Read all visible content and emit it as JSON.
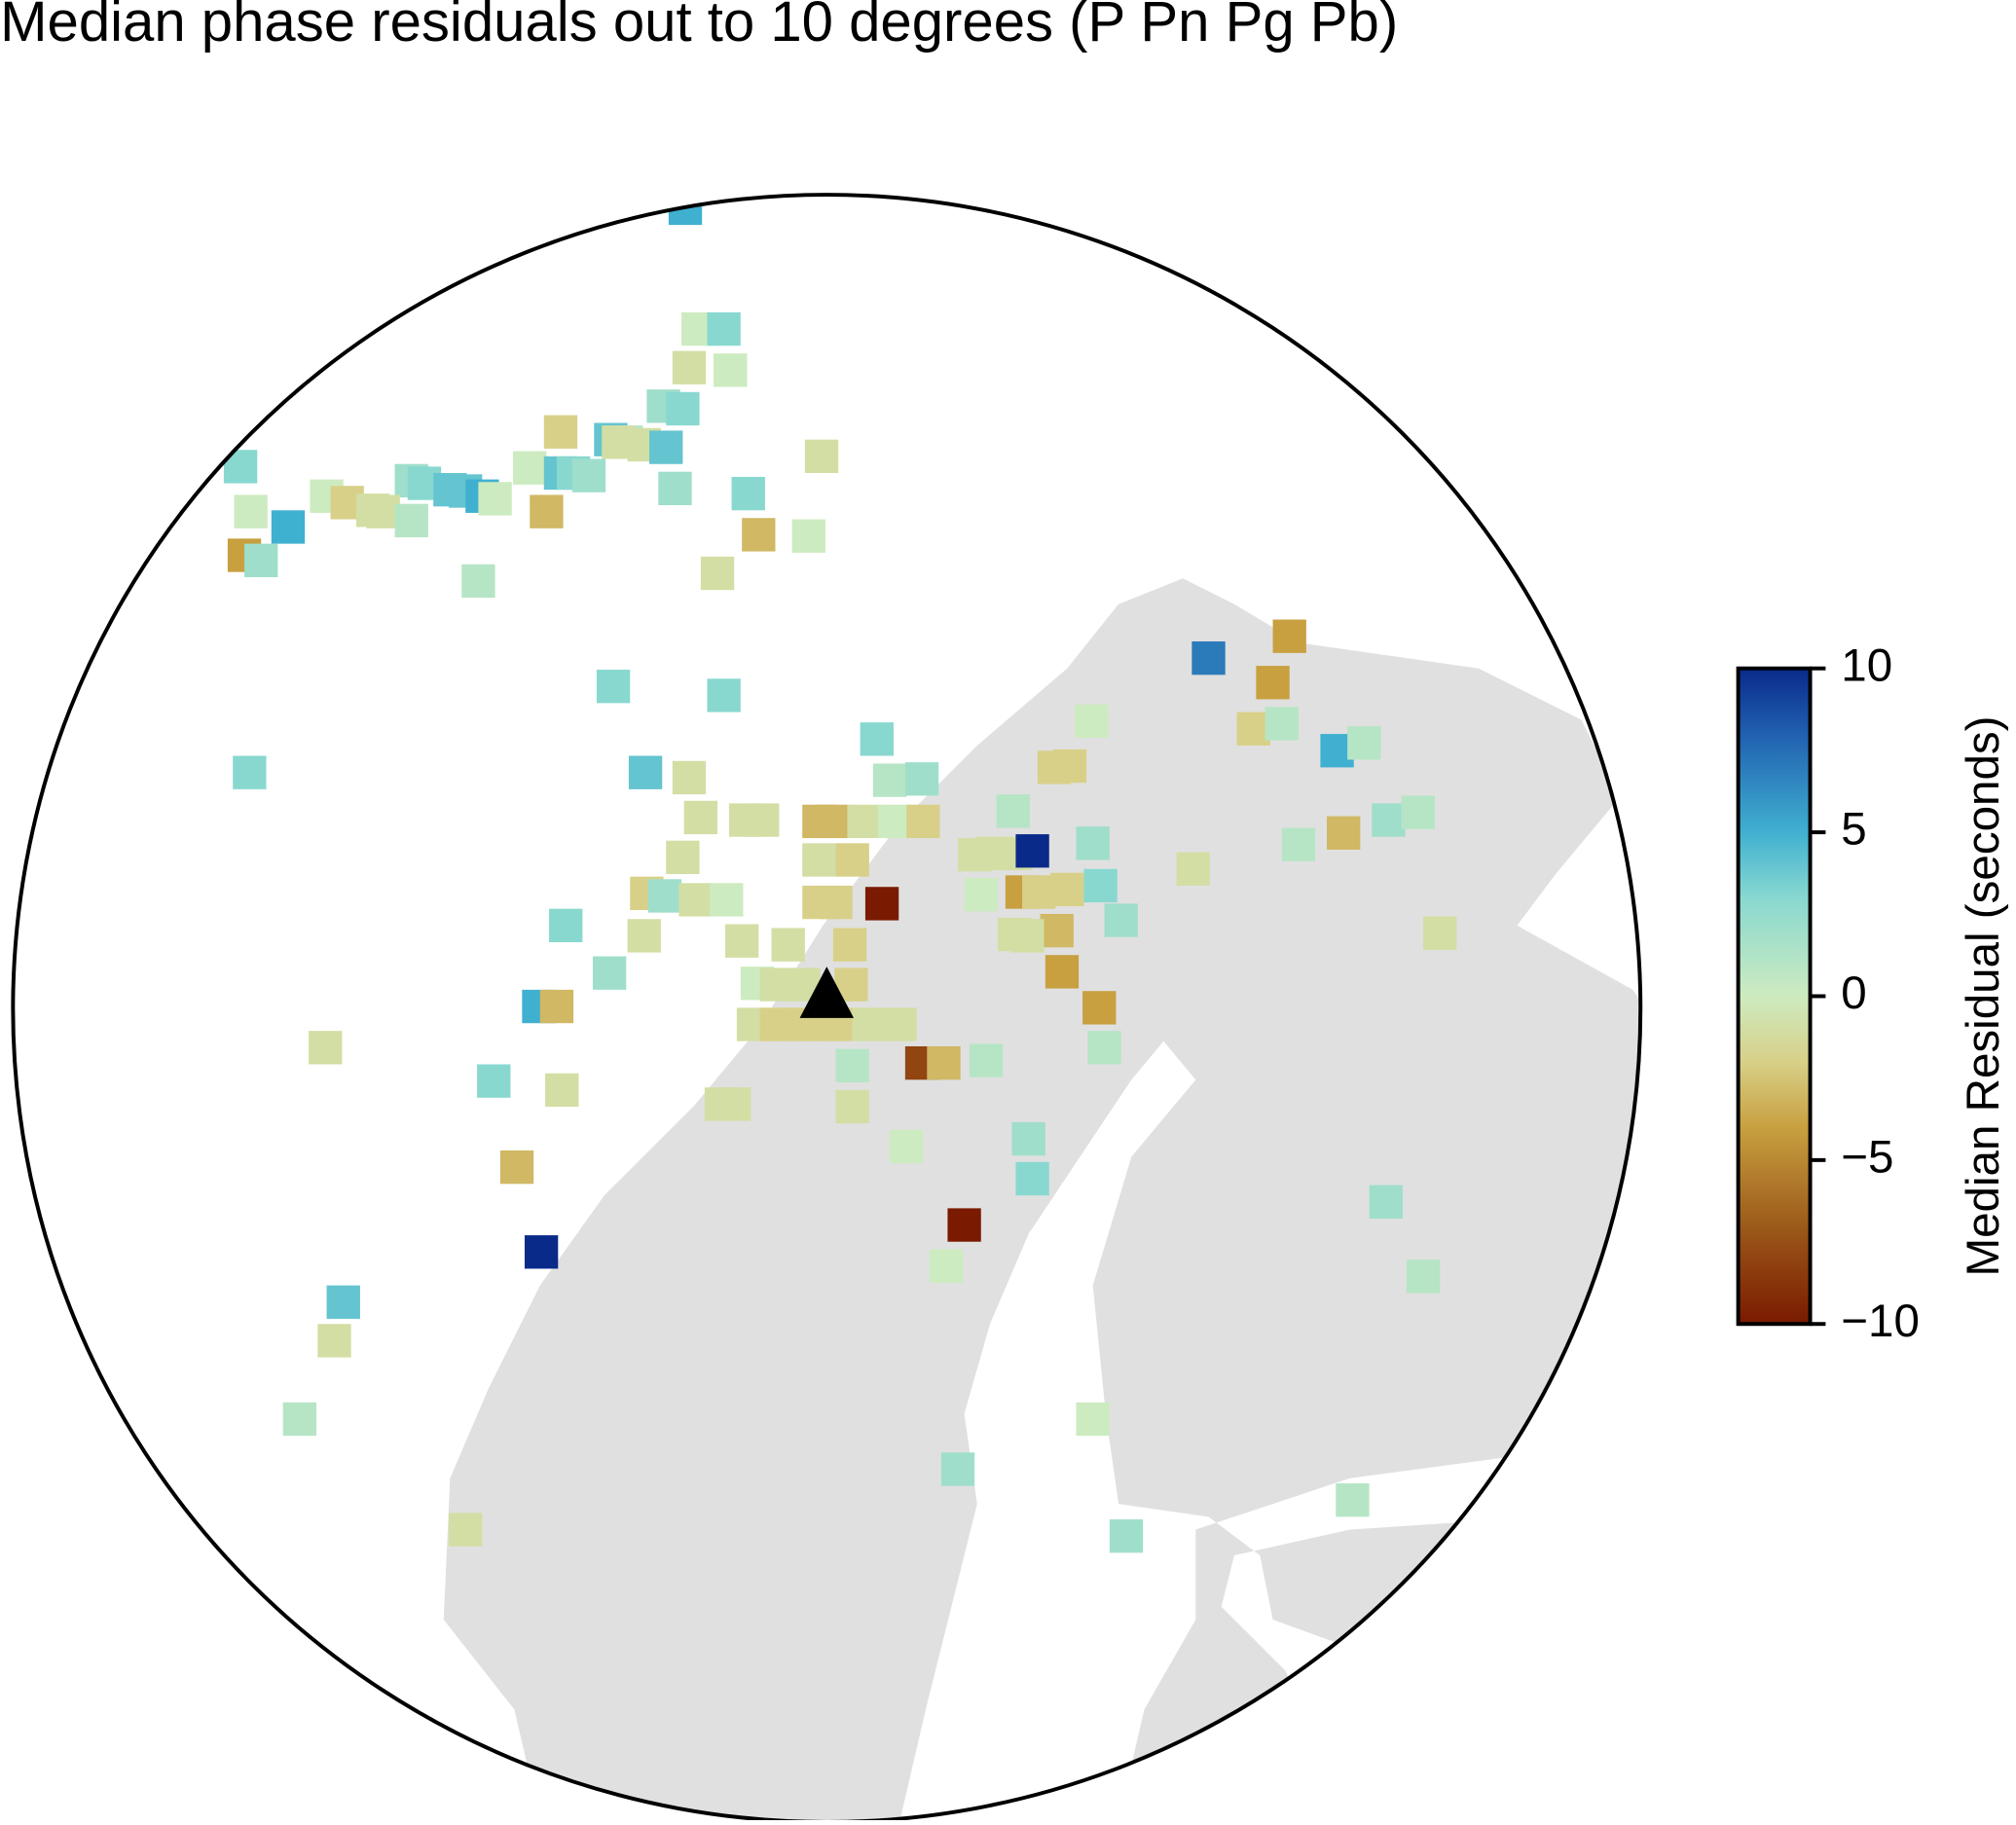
{
  "chart_data": {
    "type": "station-map",
    "title": "Median phase residuals out to 10 degrees (P Pn Pg Pb)",
    "colorbar_label": "Median Residual (seconds)",
    "ylim": [
      -10,
      10
    ],
    "yticks": [
      {
        "value": -10,
        "label": "−10"
      },
      {
        "value": -5,
        "label": "−5"
      },
      0,
      5,
      10
    ],
    "colormap": [
      {
        "value": -10,
        "color": "#7a1a00"
      },
      {
        "value": -7,
        "color": "#9c5a1a"
      },
      {
        "value": -4,
        "color": "#c8a040"
      },
      {
        "value": -2,
        "color": "#d8d088"
      },
      {
        "value": 0,
        "color": "#cdebc0"
      },
      {
        "value": 3,
        "color": "#88d8d0"
      },
      {
        "value": 5,
        "color": "#40b0d0"
      },
      {
        "value": 8,
        "color": "#2060b0"
      },
      {
        "value": 10,
        "color": "#0a2a8a"
      }
    ],
    "values": [
      5,
      0,
      3,
      -1,
      0,
      2,
      3,
      -2,
      4,
      1,
      -1,
      -1,
      4,
      -1,
      3,
      0,
      4,
      3,
      2,
      2,
      3,
      4,
      4,
      5,
      0,
      0,
      -2,
      -1,
      -1,
      1,
      0,
      5,
      -3,
      2,
      3,
      -3,
      0,
      -4,
      2,
      1,
      -1,
      7,
      -4,
      -4,
      3,
      3,
      0,
      -2,
      1,
      5,
      1,
      3,
      1,
      2,
      3,
      4,
      -1,
      -2,
      -2,
      -1,
      -1,
      -1,
      -3,
      -3,
      -1,
      0,
      -2,
      1,
      2,
      1,
      -3,
      1,
      -1,
      -1,
      -2,
      -1,
      -1,
      -1,
      10,
      2,
      -1,
      -2,
      2,
      -1,
      0,
      -2,
      -2,
      -10,
      -4,
      -2,
      -2,
      3,
      0,
      3,
      -1,
      -1,
      -1,
      -2,
      -1,
      -3,
      -1,
      2,
      -1,
      2,
      0,
      -1,
      -1,
      -2,
      -4,
      5,
      -3,
      -1,
      -2,
      -2,
      -2,
      -1,
      -1,
      -4,
      -1,
      1,
      -8,
      -3,
      1,
      1,
      3,
      -1,
      -1,
      -1,
      -1,
      0,
      2,
      -3,
      3,
      2,
      -10,
      10,
      0,
      1,
      4,
      -1,
      1,
      0,
      2,
      1,
      -1,
      2
    ]
  }
}
